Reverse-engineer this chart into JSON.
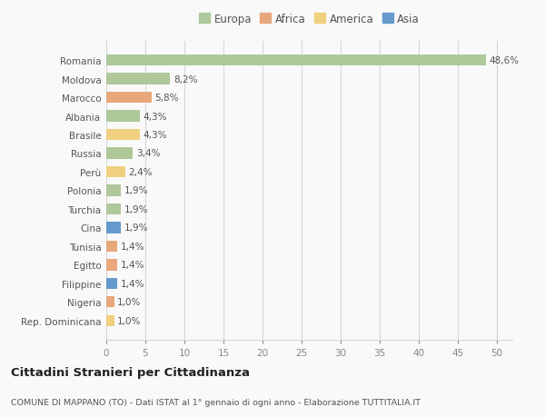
{
  "countries": [
    "Romania",
    "Moldova",
    "Marocco",
    "Albania",
    "Brasile",
    "Russia",
    "Perù",
    "Polonia",
    "Turchia",
    "Cina",
    "Tunisia",
    "Egitto",
    "Filippine",
    "Nigeria",
    "Rep. Dominicana"
  ],
  "values": [
    48.6,
    8.2,
    5.8,
    4.3,
    4.3,
    3.4,
    2.4,
    1.9,
    1.9,
    1.9,
    1.4,
    1.4,
    1.4,
    1.0,
    1.0
  ],
  "labels": [
    "48,6%",
    "8,2%",
    "5,8%",
    "4,3%",
    "4,3%",
    "3,4%",
    "2,4%",
    "1,9%",
    "1,9%",
    "1,9%",
    "1,4%",
    "1,4%",
    "1,4%",
    "1,0%",
    "1,0%"
  ],
  "continents": [
    "Europa",
    "Europa",
    "Africa",
    "Europa",
    "America",
    "Europa",
    "America",
    "Europa",
    "Europa",
    "Asia",
    "Africa",
    "Africa",
    "Asia",
    "Africa",
    "America"
  ],
  "continent_colors": {
    "Europa": "#aec89a",
    "Africa": "#e8a87c",
    "America": "#f0d080",
    "Asia": "#6699cc"
  },
  "legend_order": [
    "Europa",
    "Africa",
    "America",
    "Asia"
  ],
  "legend_colors": [
    "#aec89a",
    "#e8a87c",
    "#f0d080",
    "#6699cc"
  ],
  "xlim": [
    0,
    52
  ],
  "xticks": [
    0,
    5,
    10,
    15,
    20,
    25,
    30,
    35,
    40,
    45,
    50
  ],
  "title": "Cittadini Stranieri per Cittadinanza",
  "subtitle": "COMUNE DI MAPPANO (TO) - Dati ISTAT al 1° gennaio di ogni anno - Elaborazione TUTTITALIA.IT",
  "background_color": "#f9f9f9",
  "grid_color": "#d5d5d5",
  "bar_height": 0.6
}
